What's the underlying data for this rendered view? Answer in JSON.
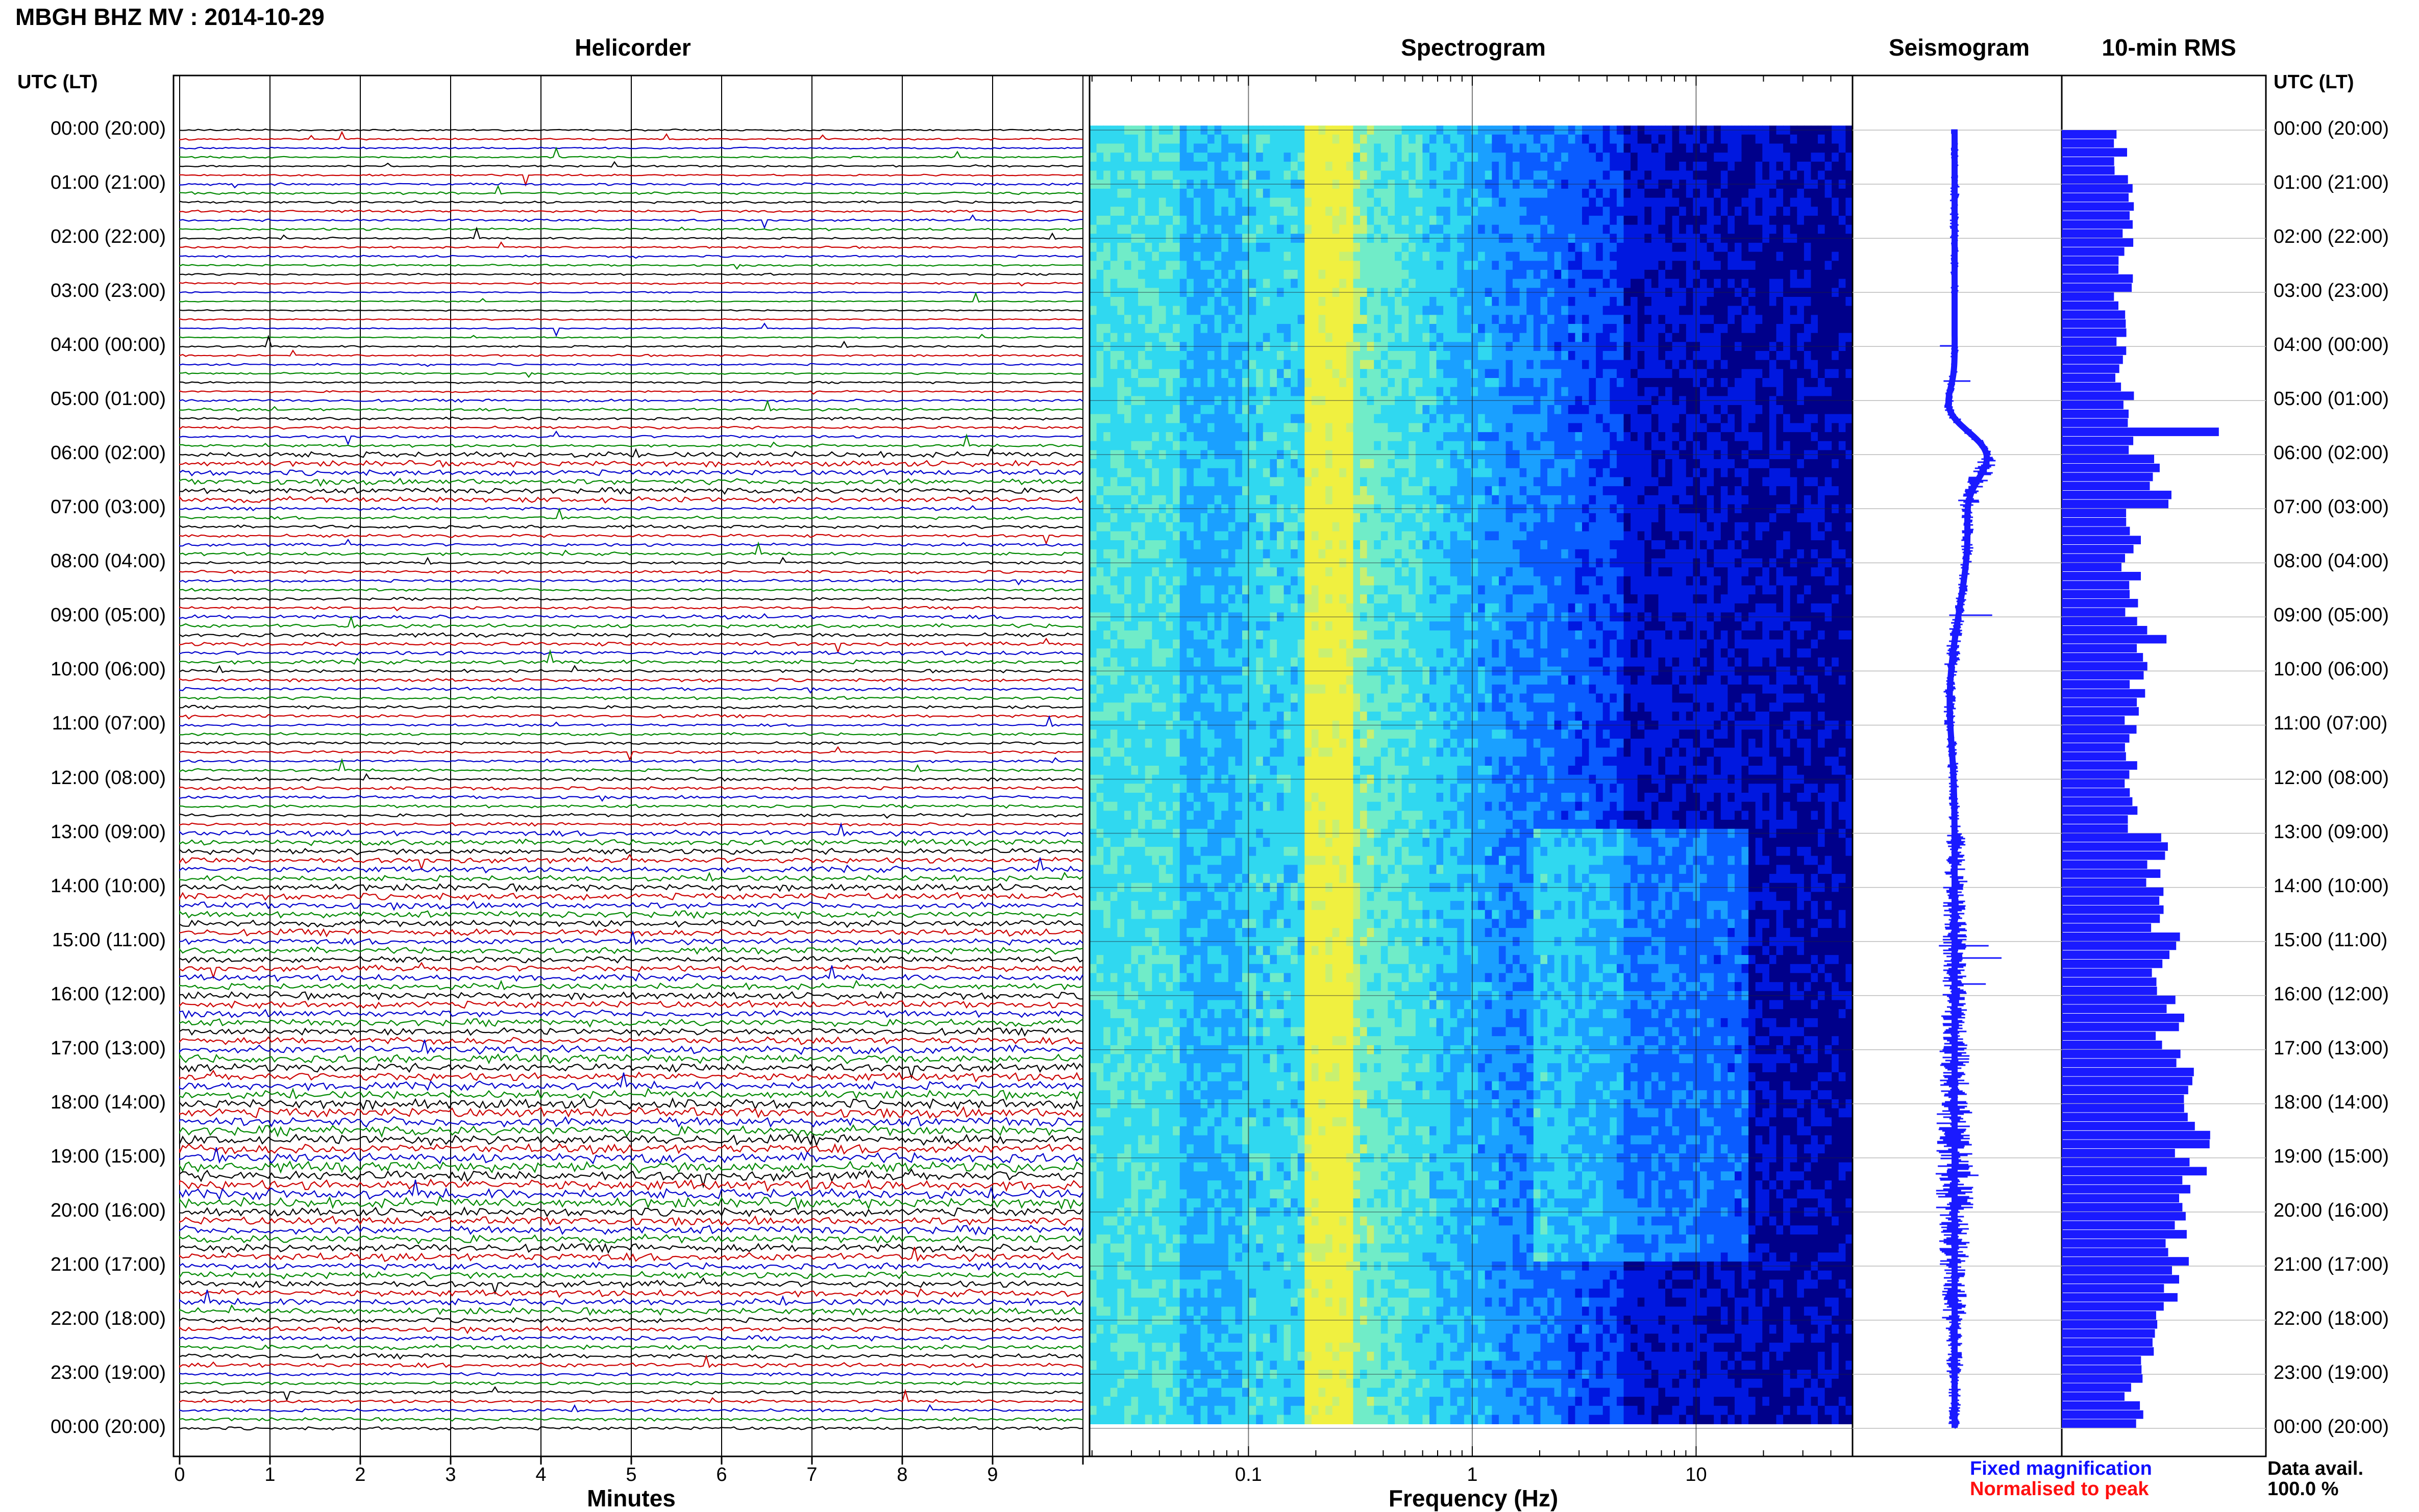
{
  "header": {
    "title": "MBGH BHZ MV : 2014-10-29",
    "panels": [
      "Helicorder",
      "Spectrogram",
      "Seismogram",
      "10-min RMS"
    ],
    "left_axis_title": "UTC (LT)",
    "right_axis_title": "UTC (LT)"
  },
  "time_labels": [
    "00:00 (20:00)",
    "01:00 (21:00)",
    "02:00 (22:00)",
    "03:00 (23:00)",
    "04:00 (00:00)",
    "05:00 (01:00)",
    "06:00 (02:00)",
    "07:00 (03:00)",
    "08:00 (04:00)",
    "09:00 (05:00)",
    "10:00 (06:00)",
    "11:00 (07:00)",
    "12:00 (08:00)",
    "13:00 (09:00)",
    "14:00 (10:00)",
    "15:00 (11:00)",
    "16:00 (12:00)",
    "17:00 (13:00)",
    "18:00 (14:00)",
    "19:00 (15:00)",
    "20:00 (16:00)",
    "21:00 (17:00)",
    "22:00 (18:00)",
    "23:00 (19:00)",
    "00:00 (20:00)"
  ],
  "helicorder": {
    "xlabel": "Minutes",
    "ticks": [
      "0",
      "1",
      "2",
      "3",
      "4",
      "5",
      "6",
      "7",
      "8",
      "9"
    ],
    "colors": [
      "#000000",
      "#cc0000",
      "#0000cc",
      "#008800"
    ]
  },
  "spectrogram": {
    "xlabel": "Frequency (Hz)",
    "ticks": [
      "0.1",
      "1",
      "10"
    ],
    "colormap": [
      "#00008a",
      "#0018e0",
      "#0a5cff",
      "#1aa0ff",
      "#30d8f0",
      "#70ecc8",
      "#c8f070",
      "#f0f040"
    ]
  },
  "legend": {
    "fixed": "Fixed magnification",
    "normalised": "Normalised to peak",
    "fixed_color": "#1010ff",
    "normalised_color": "#ff1010"
  },
  "availability": {
    "label": "Data avail.",
    "value": "100.0 %"
  },
  "chart_data": {
    "type": "bar",
    "title": "10-min RMS",
    "categories_hours": [
      0,
      1,
      2,
      3,
      4,
      5,
      6,
      7,
      8,
      9,
      10,
      11,
      12,
      13,
      14,
      15,
      16,
      17,
      18,
      19,
      20,
      21,
      22,
      23
    ],
    "values": [
      0.35,
      0.38,
      0.36,
      0.33,
      0.36,
      0.4,
      0.55,
      0.42,
      0.4,
      0.46,
      0.42,
      0.4,
      0.42,
      0.55,
      0.6,
      0.58,
      0.62,
      0.68,
      0.76,
      0.78,
      0.68,
      0.6,
      0.5,
      0.42
    ],
    "xlim": [
      0,
      1
    ],
    "color": "#1a1aff"
  }
}
